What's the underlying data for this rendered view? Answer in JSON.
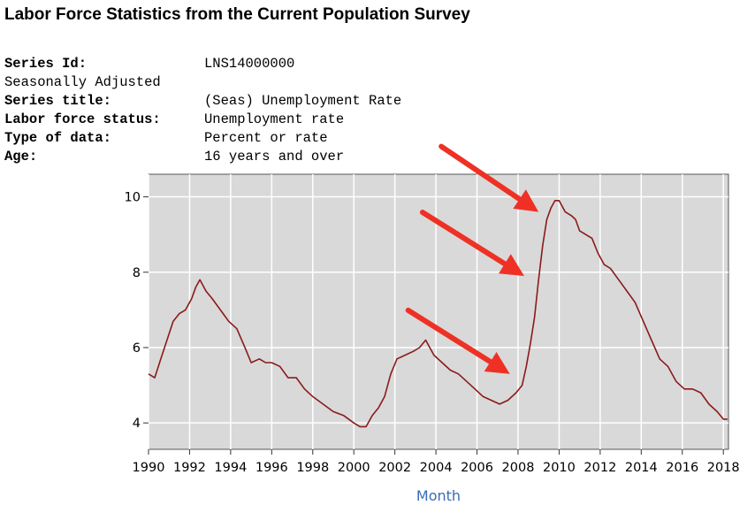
{
  "page": {
    "title": "Labor Force Statistics from the Current Population Survey"
  },
  "series_info": [
    {
      "label": "Series Id:",
      "value": "LNS14000000",
      "bold": true
    },
    {
      "label": "Seasonally Adjusted",
      "value": "",
      "bold": false
    },
    {
      "label": "Series title:",
      "value": "(Seas) Unemployment Rate",
      "bold": true
    },
    {
      "label": "Labor force status:",
      "value": "Unemployment rate",
      "bold": true
    },
    {
      "label": "Type of data:",
      "value": "Percent or rate",
      "bold": true
    },
    {
      "label": "Age:",
      "value": "16 years and over",
      "bold": true
    }
  ],
  "colors": {
    "plot_background": "#d9d9d9",
    "grid": "#ffffff",
    "line": "#8b1a1a",
    "arrow": "#ee3124",
    "axis_title": "#3b6db3"
  },
  "chart_data": {
    "type": "line",
    "title": "",
    "xlabel": "Month",
    "ylabel": "",
    "xlim": [
      1990,
      2018.25
    ],
    "ylim": [
      3.3,
      10.6
    ],
    "x_ticks": [
      1990,
      1992,
      1994,
      1996,
      1998,
      2000,
      2002,
      2004,
      2006,
      2008,
      2010,
      2012,
      2014,
      2016,
      2018
    ],
    "y_ticks": [
      4,
      6,
      8,
      10
    ],
    "grid": true,
    "legend": "none",
    "series": [
      {
        "name": "",
        "x": [
          1990.0,
          1990.3,
          1990.6,
          1990.9,
          1991.2,
          1991.5,
          1991.8,
          1992.1,
          1992.3,
          1992.5,
          1992.8,
          1993.1,
          1993.5,
          1993.9,
          1994.3,
          1994.7,
          1995.0,
          1995.4,
          1995.7,
          1996.0,
          1996.4,
          1996.8,
          1997.2,
          1997.6,
          1998.0,
          1998.5,
          1999.0,
          1999.5,
          2000.0,
          2000.3,
          2000.6,
          2000.9,
          2001.2,
          2001.5,
          2001.8,
          2002.1,
          2002.5,
          2002.9,
          2003.2,
          2003.5,
          2003.9,
          2004.3,
          2004.7,
          2005.1,
          2005.5,
          2005.9,
          2006.3,
          2006.7,
          2007.1,
          2007.5,
          2007.9,
          2008.2,
          2008.4,
          2008.6,
          2008.8,
          2009.0,
          2009.2,
          2009.4,
          2009.6,
          2009.8,
          2010.0,
          2010.3,
          2010.6,
          2010.8,
          2011.0,
          2011.3,
          2011.6,
          2011.9,
          2012.2,
          2012.5,
          2012.9,
          2013.3,
          2013.7,
          2014.1,
          2014.5,
          2014.9,
          2015.3,
          2015.7,
          2016.1,
          2016.5,
          2016.9,
          2017.3,
          2017.7,
          2018.0,
          2018.2
        ],
        "y": [
          5.3,
          5.2,
          5.7,
          6.2,
          6.7,
          6.9,
          7.0,
          7.3,
          7.6,
          7.8,
          7.5,
          7.3,
          7.0,
          6.7,
          6.5,
          6.0,
          5.6,
          5.7,
          5.6,
          5.6,
          5.5,
          5.2,
          5.2,
          4.9,
          4.7,
          4.5,
          4.3,
          4.2,
          4.0,
          3.9,
          3.9,
          4.2,
          4.4,
          4.7,
          5.3,
          5.7,
          5.8,
          5.9,
          6.0,
          6.2,
          5.8,
          5.6,
          5.4,
          5.3,
          5.1,
          4.9,
          4.7,
          4.6,
          4.5,
          4.6,
          4.8,
          5.0,
          5.5,
          6.1,
          6.8,
          7.8,
          8.7,
          9.4,
          9.7,
          9.9,
          9.9,
          9.6,
          9.5,
          9.4,
          9.1,
          9.0,
          8.9,
          8.5,
          8.2,
          8.1,
          7.8,
          7.5,
          7.2,
          6.7,
          6.2,
          5.7,
          5.5,
          5.1,
          4.9,
          4.9,
          4.8,
          4.5,
          4.3,
          4.1,
          4.1
        ]
      }
    ]
  }
}
